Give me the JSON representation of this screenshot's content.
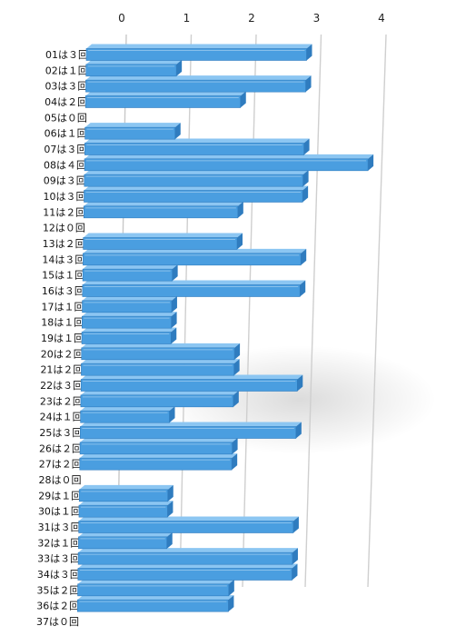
{
  "chart_data": {
    "type": "bar",
    "orientation": "horizontal",
    "style": "3d-perspective",
    "color": "#4a9ee0",
    "color_dark": "#2f7cbf",
    "color_light": "#8cc6f2",
    "xlim": [
      0,
      4
    ],
    "xticks": [
      "0",
      "1",
      "2",
      "3",
      "4"
    ],
    "x_axis_position": "top",
    "grid": true,
    "legend": "none",
    "title": "",
    "xlabel": "",
    "ylabel": "",
    "categories": [
      "01は３回",
      "02は１回",
      "03は３回",
      "04は２回",
      "05は０回",
      "06は１回",
      "07は３回",
      "08は４回",
      "09は３回",
      "10は３回",
      "11は２回",
      "12は０回",
      "13は２回",
      "14は３回",
      "15は１回",
      "16は３回",
      "17は１回",
      "18は１回",
      "19は１回",
      "20は２回",
      "21は２回",
      "22は３回",
      "23は２回",
      "24は１回",
      "25は３回",
      "26は２回",
      "27は２回",
      "28は０回",
      "29は１回",
      "30は１回",
      "31は３回",
      "32は１回",
      "33は３回",
      "34は３回",
      "35は２回",
      "36は２回",
      "37は０回"
    ],
    "values": [
      3,
      1,
      3,
      2,
      0,
      1,
      3,
      4,
      3,
      3,
      2,
      0,
      2,
      3,
      1,
      3,
      1,
      1,
      1,
      2,
      2,
      3,
      2,
      1,
      3,
      2,
      2,
      0,
      1,
      1,
      3,
      1,
      3,
      3,
      2,
      2,
      0
    ]
  }
}
